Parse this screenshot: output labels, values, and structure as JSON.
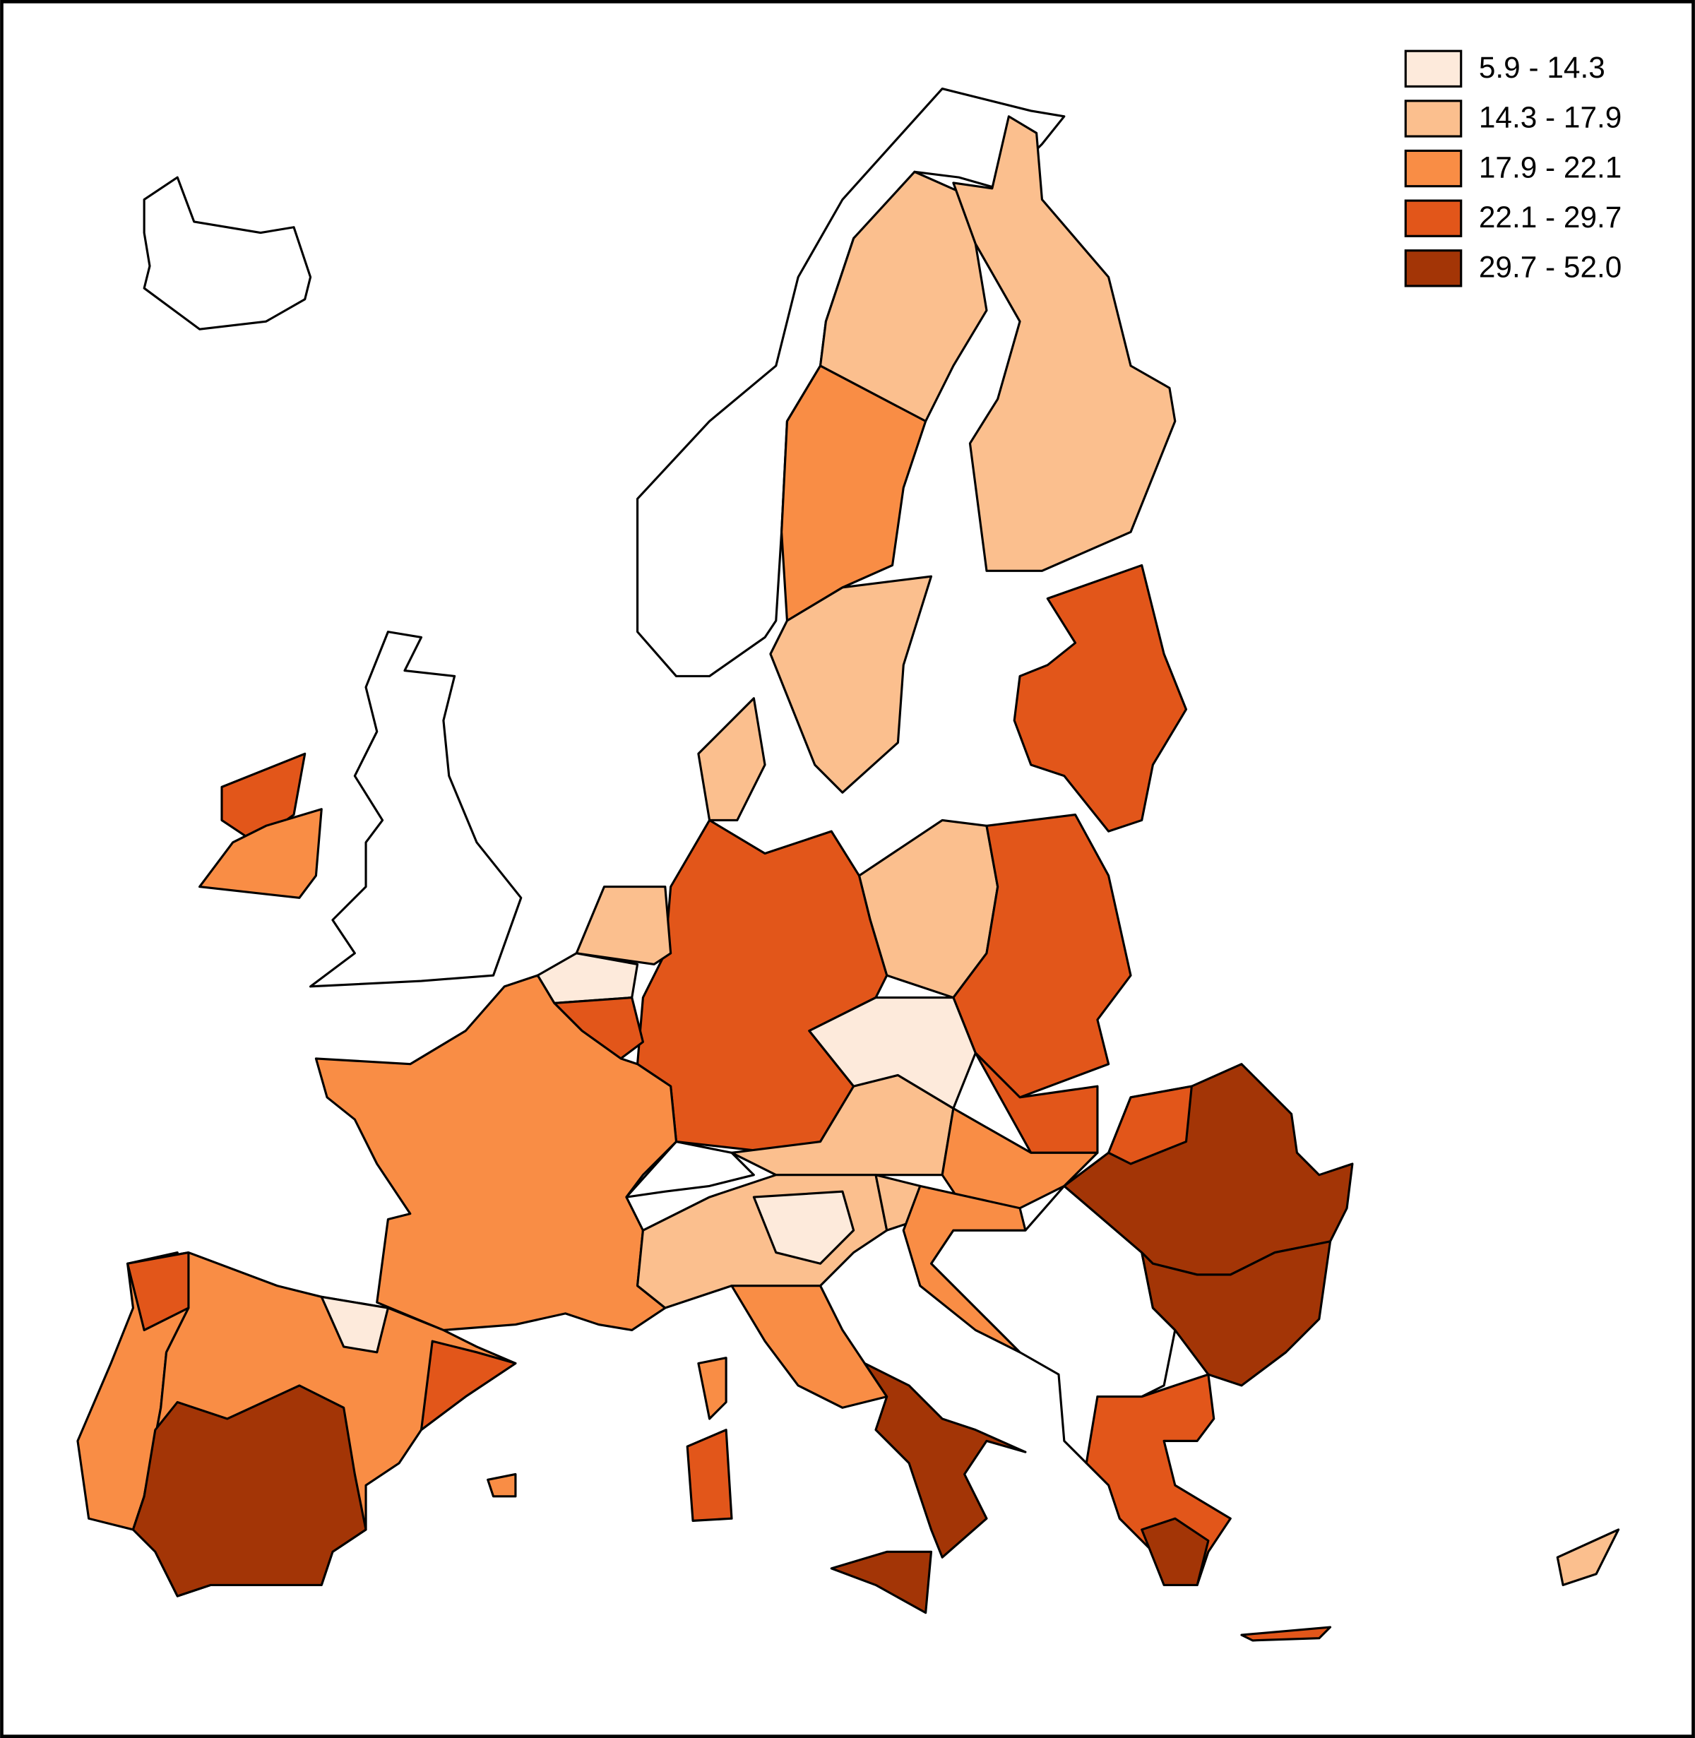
{
  "legend": [
    {
      "label": "5.9 - 14.3",
      "color": "#fdeadb"
    },
    {
      "label": "14.3 - 17.9",
      "color": "#fbbf8e"
    },
    {
      "label": "17.9 - 22.1",
      "color": "#f98d45"
    },
    {
      "label": "22.1 - 29.7",
      "color": "#e2561a"
    },
    {
      "label": "29.7 - 52.0",
      "color": "#a33506"
    }
  ]
}
